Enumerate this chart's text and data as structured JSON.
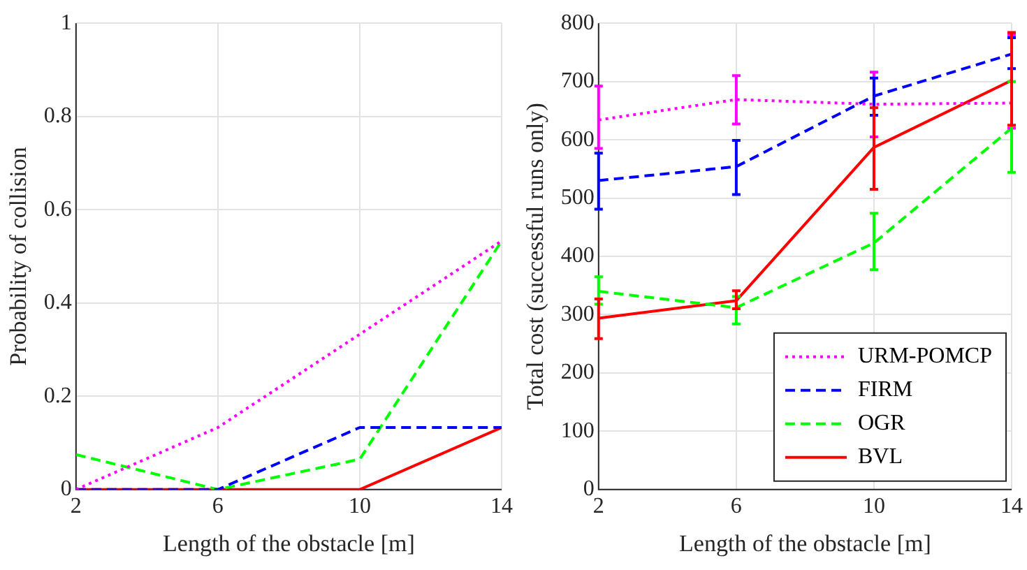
{
  "chart_data": [
    {
      "type": "line",
      "xlabel": "Length of the obstacle [m]",
      "ylabel": "Probability of collision",
      "x": [
        2,
        6,
        10,
        14
      ],
      "xlim": [
        2,
        14
      ],
      "xticks": [
        2,
        6,
        10,
        14
      ],
      "ylim": [
        0,
        1
      ],
      "yticks": [
        0,
        0.2,
        0.4,
        0.6,
        0.8,
        1
      ],
      "grid": true,
      "legend": false,
      "marker": "none",
      "series": [
        {
          "color": "#ff00ff",
          "line_style": "dotted",
          "values": [
            0,
            0.133,
            0.333,
            0.533
          ]
        },
        {
          "color": "#0000ff",
          "line_style": "dashed",
          "values": [
            0,
            0,
            0.133,
            0.133
          ]
        },
        {
          "color": "#00ff00",
          "line_style": "dashed",
          "values": [
            0.075,
            0,
            0.065,
            0.533
          ]
        },
        {
          "color": "#ff0000",
          "line_style": "solid",
          "values": [
            0,
            0,
            0,
            0.133
          ]
        }
      ]
    },
    {
      "type": "line",
      "xlabel": "Length of the obstacle [m]",
      "ylabel": "Total cost (successful runs only)",
      "x": [
        2,
        6,
        10,
        14
      ],
      "xlim": [
        2,
        14
      ],
      "xticks": [
        2,
        6,
        10,
        14
      ],
      "ylim": [
        0,
        800
      ],
      "yticks": [
        0,
        100,
        200,
        300,
        400,
        500,
        600,
        700,
        800
      ],
      "grid": true,
      "legend": "bottom right",
      "marker": "none",
      "series": [
        {
          "name": "URM-POMCP",
          "color": "#ff00ff",
          "line_style": "dotted",
          "values": [
            634,
            669,
            661,
            663
          ],
          "errors": [
            [
              585,
              692
            ],
            [
              627,
              710
            ],
            [
              605,
              716
            ],
            [
              620,
              780
            ]
          ]
        },
        {
          "name": "FIRM",
          "color": "#0000ff",
          "line_style": "dashed",
          "values": [
            530,
            554,
            675,
            747
          ],
          "errors": [
            [
              481,
              577
            ],
            [
              506,
              599
            ],
            [
              642,
              706
            ],
            [
              722,
              775
            ]
          ]
        },
        {
          "name": "OGR",
          "color": "#00ff00",
          "line_style": "dashed",
          "values": [
            340,
            312,
            423,
            620
          ],
          "errors": [
            [
              318,
              365
            ],
            [
              284,
              331
            ],
            [
              377,
              474
            ],
            [
              544,
              700
            ]
          ]
        },
        {
          "name": "BVL",
          "color": "#ff0000",
          "line_style": "solid",
          "values": [
            294,
            324,
            587,
            702
          ],
          "errors": [
            [
              259,
              327
            ],
            [
              310,
              341
            ],
            [
              515,
              655
            ],
            [
              625,
              784
            ]
          ]
        }
      ]
    }
  ]
}
